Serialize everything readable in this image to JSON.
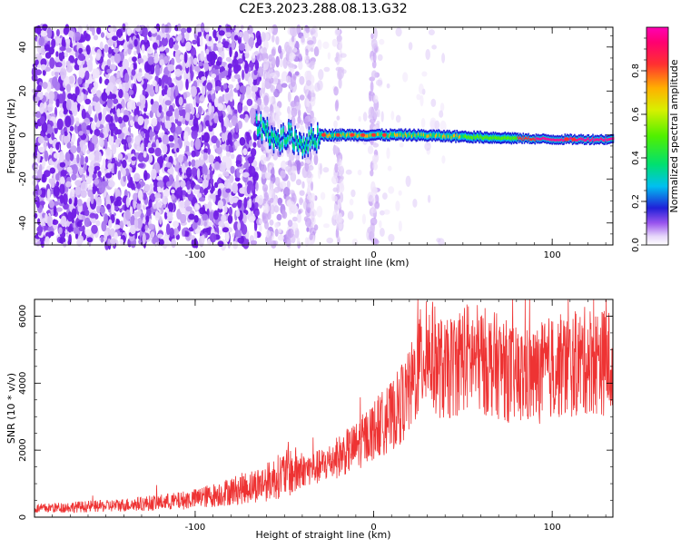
{
  "page": {
    "title": "C2E3.2023.288.08.13.G32"
  },
  "colors": {
    "spectrum_scale": [
      "#ffffff",
      "#e6d6fa",
      "#b78cf2",
      "#7a1fe8",
      "#2020d8",
      "#00c0f0",
      "#00e070",
      "#50f000",
      "#d8f000",
      "#ffb000",
      "#ff3030",
      "#ff00b4"
    ],
    "snr_line": "#ee3333"
  },
  "chart_data": [
    {
      "type": "heatmap",
      "title": "",
      "xlabel": "Height of straight line (km)",
      "ylabel": "Frequency (Hz)",
      "xlim": [
        -190,
        134
      ],
      "ylim": [
        -50,
        49
      ],
      "x_ticks": [
        -100,
        0,
        100
      ],
      "x_tick_labels": [
        "-100",
        "0",
        "100"
      ],
      "y_ticks": [
        -40,
        -20,
        0,
        20,
        40
      ],
      "y_tick_labels": [
        "-40",
        "-20",
        "0",
        "20",
        "40"
      ],
      "colorbar": {
        "label": "Normalized spectral amplitude",
        "range": [
          0,
          1
        ],
        "ticks": [
          0,
          0.2,
          0.4,
          0.6,
          0.8
        ],
        "tick_labels": [
          "0.0",
          "0.2",
          "0.4",
          "0.6",
          "0.8"
        ]
      },
      "regions": {
        "noise_dense_end_km": -64,
        "noise_sparse_end_km": -32,
        "signal_start_km": -66,
        "signal_center_hz": [
          [
            -66,
            5
          ],
          [
            -60,
            2
          ],
          [
            -55,
            -3
          ],
          [
            -48,
            0
          ],
          [
            -40,
            -4
          ],
          [
            -30,
            0
          ],
          [
            -10,
            0
          ],
          [
            20,
            0
          ],
          [
            60,
            -1
          ],
          [
            100,
            -2
          ],
          [
            134,
            -2
          ]
        ]
      }
    },
    {
      "type": "line",
      "title": "",
      "xlabel": "Height of straight line (km)",
      "ylabel": "SNR (10 * v/v)",
      "xlim": [
        -190,
        134
      ],
      "ylim": [
        0,
        6500
      ],
      "x_ticks": [
        -100,
        0,
        100
      ],
      "x_tick_labels": [
        "-100",
        "0",
        "100"
      ],
      "y_ticks": [
        0,
        2000,
        4000,
        6000
      ],
      "y_tick_labels": [
        "0",
        "2000",
        "4000",
        "6000"
      ],
      "series": [
        {
          "x": [
            -190,
            -170,
            -150,
            -130,
            -110,
            -100,
            -90,
            -80,
            -70,
            -60,
            -50,
            -40,
            -30,
            -20,
            -10,
            0,
            10,
            20,
            25,
            30,
            40,
            50,
            60,
            70,
            80,
            90,
            100,
            110,
            120,
            134
          ],
          "values": [
            250,
            300,
            330,
            400,
            480,
            550,
            650,
            780,
            900,
            1050,
            1300,
            1400,
            1500,
            1800,
            2100,
            2600,
            3000,
            3700,
            4500,
            5000,
            4300,
            4800,
            4700,
            4500,
            4200,
            4200,
            4500,
            4500,
            4700,
            4600
          ]
        }
      ]
    }
  ]
}
